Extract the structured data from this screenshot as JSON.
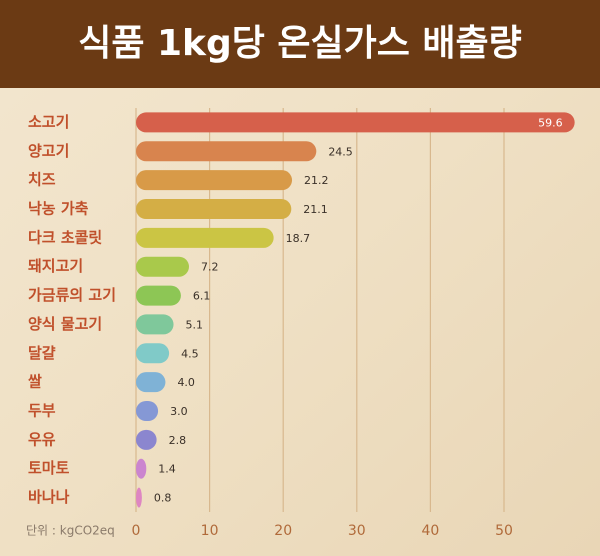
{
  "chart_data": {
    "type": "barh",
    "title": "식품 1kg당 온실가스 배출량",
    "categories": [
      "소고기",
      "양고기",
      "치즈",
      "낙농 가축",
      "다크 초콜릿",
      "돼지고기",
      "가금류의 고기",
      "양식 물고기",
      "달걀",
      "쌀",
      "두부",
      "우유",
      "토마토",
      "바나나"
    ],
    "values": [
      59.6,
      24.5,
      21.2,
      21.1,
      18.7,
      7.2,
      6.1,
      5.1,
      4.5,
      4.0,
      3.0,
      2.8,
      1.4,
      0.8
    ],
    "value_labels": [
      "59.6",
      "24.5",
      "21.2",
      "21.1",
      "18.7",
      "7.2",
      "6.1",
      "5.1",
      "4.5",
      "4.0",
      "3.0",
      "2.8",
      "1.4",
      "0.8"
    ],
    "colors": [
      "#d6604b",
      "#d8844e",
      "#d89a48",
      "#d4ae45",
      "#cbc544",
      "#a9c94b",
      "#8dc655",
      "#7fc89b",
      "#80cac8",
      "#7fb2d6",
      "#8598d5",
      "#8b86cf",
      "#cb85cf",
      "#de86c2"
    ],
    "unit_note": "단위 : kgCO2eq",
    "xlim": [
      0,
      60
    ],
    "xticks": [
      0,
      10,
      20,
      30,
      40,
      50
    ],
    "grid": true
  }
}
